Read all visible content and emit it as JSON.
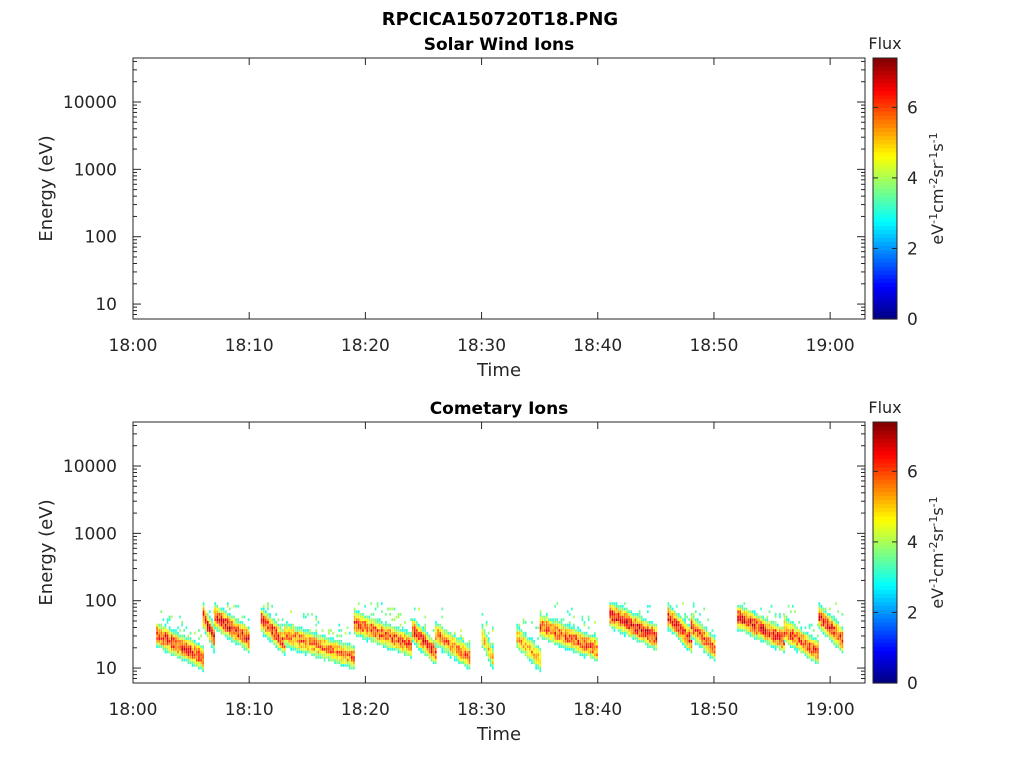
{
  "figure_title": "RPCICA150720T18.PNG",
  "colorbar": {
    "title": "Flux",
    "label": "eV-1cm-2sr-1s-1",
    "ticks": [
      "0",
      "2",
      "4",
      "6"
    ],
    "range": [
      0,
      7.4
    ],
    "colormap": "jet"
  },
  "chart_data": [
    {
      "type": "heatmap",
      "title": "Solar Wind Ions",
      "xlabel": "Time",
      "ylabel": "Energy (eV)",
      "y_scale": "log",
      "xlim": [
        "18:00",
        "19:03"
      ],
      "ylim": [
        6,
        45000
      ],
      "x_ticks": [
        "18:00",
        "18:10",
        "18:20",
        "18:30",
        "18:40",
        "18:50",
        "19:00"
      ],
      "y_ticks": [
        "10",
        "100",
        "1000",
        "10000"
      ],
      "ion_bursts": []
    },
    {
      "type": "heatmap",
      "title": "Cometary Ions",
      "xlabel": "Time",
      "ylabel": "Energy (eV)",
      "y_scale": "log",
      "xlim": [
        "18:00",
        "19:03"
      ],
      "ylim": [
        6,
        45000
      ],
      "x_ticks": [
        "18:00",
        "18:10",
        "18:20",
        "18:30",
        "18:40",
        "18:50",
        "19:00"
      ],
      "y_ticks": [
        "10",
        "100",
        "1000",
        "10000"
      ],
      "data_start": "18:02",
      "data_end": "19:01",
      "ion_bursts": [
        {
          "start": "18:02",
          "end": "18:06",
          "peak_energy_eV": 30,
          "max_flux": 7.0
        },
        {
          "start": "18:06",
          "end": "18:07",
          "peak_energy_eV": 55,
          "max_flux": 7.2
        },
        {
          "start": "18:07",
          "end": "18:10",
          "peak_energy_eV": 55,
          "max_flux": 7.2
        },
        {
          "start": "18:11",
          "end": "18:13",
          "peak_energy_eV": 50,
          "max_flux": 7.0
        },
        {
          "start": "18:13",
          "end": "18:19",
          "peak_energy_eV": 30,
          "max_flux": 6.5
        },
        {
          "start": "18:19",
          "end": "18:24",
          "peak_energy_eV": 45,
          "max_flux": 6.8
        },
        {
          "start": "18:24",
          "end": "18:26",
          "peak_energy_eV": 35,
          "max_flux": 7.0
        },
        {
          "start": "18:26",
          "end": "18:29",
          "peak_energy_eV": 30,
          "max_flux": 6.5
        },
        {
          "start": "18:30",
          "end": "18:31",
          "peak_energy_eV": 28,
          "max_flux": 5.8
        },
        {
          "start": "18:33",
          "end": "18:35",
          "peak_energy_eV": 28,
          "max_flux": 6.0
        },
        {
          "start": "18:35",
          "end": "18:40",
          "peak_energy_eV": 40,
          "max_flux": 6.8
        },
        {
          "start": "18:41",
          "end": "18:45",
          "peak_energy_eV": 60,
          "max_flux": 7.4
        },
        {
          "start": "18:46",
          "end": "18:48",
          "peak_energy_eV": 55,
          "max_flux": 7.2
        },
        {
          "start": "18:48",
          "end": "18:50",
          "peak_energy_eV": 40,
          "max_flux": 6.8
        },
        {
          "start": "18:52",
          "end": "18:56",
          "peak_energy_eV": 55,
          "max_flux": 7.2
        },
        {
          "start": "18:56",
          "end": "18:59",
          "peak_energy_eV": 35,
          "max_flux": 6.8
        },
        {
          "start": "18:59",
          "end": "19:01",
          "peak_energy_eV": 55,
          "max_flux": 7.2
        }
      ]
    }
  ]
}
